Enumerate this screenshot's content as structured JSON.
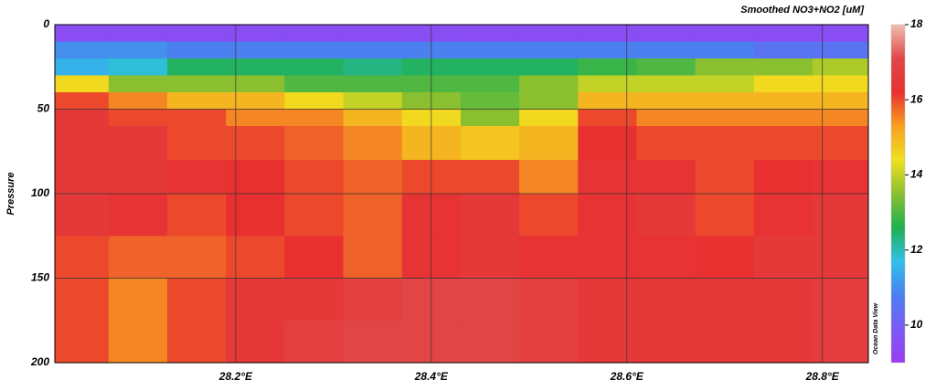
{
  "chart_data": {
    "type": "heatmap",
    "title": "Smoothed NO3+NO2 [uM]",
    "y_label": "Pressure",
    "watermark": "Ocean Data View",
    "x_edges": [
      28.015,
      28.07,
      28.13,
      28.19,
      28.25,
      28.31,
      28.37,
      28.43,
      28.49,
      28.55,
      28.61,
      28.67,
      28.73,
      28.79,
      28.847
    ],
    "y_edges": [
      0,
      10,
      20,
      30,
      40,
      50,
      60,
      80,
      100,
      125,
      150,
      175,
      200
    ],
    "z": [
      [
        9.5,
        9.5,
        9.5,
        9.5,
        9.5,
        9.5,
        9.5,
        9.5,
        9.5,
        9.5,
        9.5,
        9.5,
        9.5,
        9.5
      ],
      [
        11,
        11,
        10.8,
        10.8,
        10.8,
        10.8,
        10.8,
        10.8,
        10.8,
        10.8,
        10.8,
        10.8,
        10.5,
        10.5
      ],
      [
        11.5,
        11.8,
        12.5,
        12.5,
        12.5,
        12.3,
        12.5,
        12.5,
        12.5,
        12.8,
        13,
        13.5,
        13.5,
        13.8
      ],
      [
        14.5,
        13.5,
        13.5,
        13.5,
        13,
        13,
        13,
        13,
        13.5,
        14,
        14,
        14,
        14.5,
        14.5
      ],
      [
        16,
        15.5,
        15,
        15,
        14.5,
        14,
        13.5,
        13.2,
        13.5,
        15,
        15,
        15,
        15,
        15
      ],
      [
        16.5,
        16,
        16,
        15.5,
        15.5,
        15,
        14.5,
        13.5,
        14.5,
        16,
        15.5,
        15.5,
        15.5,
        15.5
      ],
      [
        16.5,
        16.5,
        16,
        16,
        15.8,
        15.5,
        15,
        14.8,
        15,
        16.2,
        16,
        16,
        16,
        16
      ],
      [
        16.5,
        16.5,
        16.3,
        16.2,
        16,
        15.8,
        16,
        16,
        15.5,
        16.3,
        16.3,
        16,
        16.2,
        16.3
      ],
      [
        16.5,
        16.3,
        16,
        16.2,
        16,
        15.8,
        16.3,
        16.5,
        16,
        16.3,
        16.5,
        16,
        16.3,
        16.5
      ],
      [
        16,
        15.8,
        15.8,
        16,
        16.2,
        15.8,
        16.3,
        16.5,
        16.3,
        16.3,
        16.3,
        16.2,
        16.5,
        16.5
      ],
      [
        16,
        15.5,
        16,
        16.5,
        16.5,
        16.8,
        17,
        17,
        16.8,
        16.5,
        16.5,
        16.5,
        16.5,
        16.7
      ],
      [
        16,
        15.5,
        16,
        16.5,
        16.8,
        17,
        17,
        17,
        16.8,
        16.5,
        16.5,
        16.5,
        16.5,
        16.7
      ]
    ],
    "xlim": [
      28.015,
      28.847
    ],
    "xticks": [
      {
        "value": 28.2,
        "label": "28.2°E"
      },
      {
        "value": 28.4,
        "label": "28.4°E"
      },
      {
        "value": 28.6,
        "label": "28.6°E"
      },
      {
        "value": 28.8,
        "label": "28.8°E"
      }
    ],
    "ylim": [
      200,
      0
    ],
    "yticks": [
      0,
      50,
      100,
      150,
      200
    ],
    "zlim": [
      9,
      18
    ],
    "zticks": [
      10,
      12,
      14,
      16,
      18
    ],
    "colorscale": [
      "#9b3cf0",
      "#7a5af5",
      "#4a80f0",
      "#30c0e8",
      "#20b050",
      "#8ac030",
      "#f0e020",
      "#f8a020",
      "#e83030",
      "#e04848",
      "#f0c0b0"
    ],
    "grid": true
  }
}
